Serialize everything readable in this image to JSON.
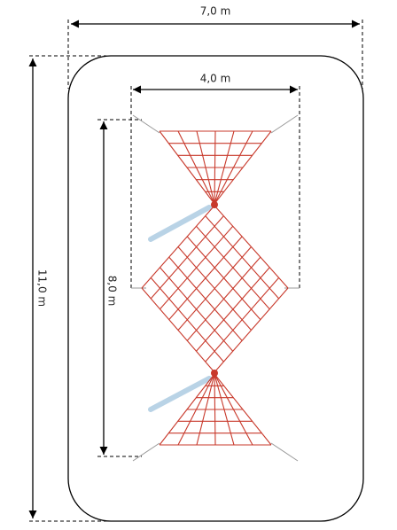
{
  "dimensions": {
    "width_total": "7,0 m",
    "width_net": "4,0 m",
    "length_total": "11,0 m",
    "length_net": "8,0 m"
  }
}
